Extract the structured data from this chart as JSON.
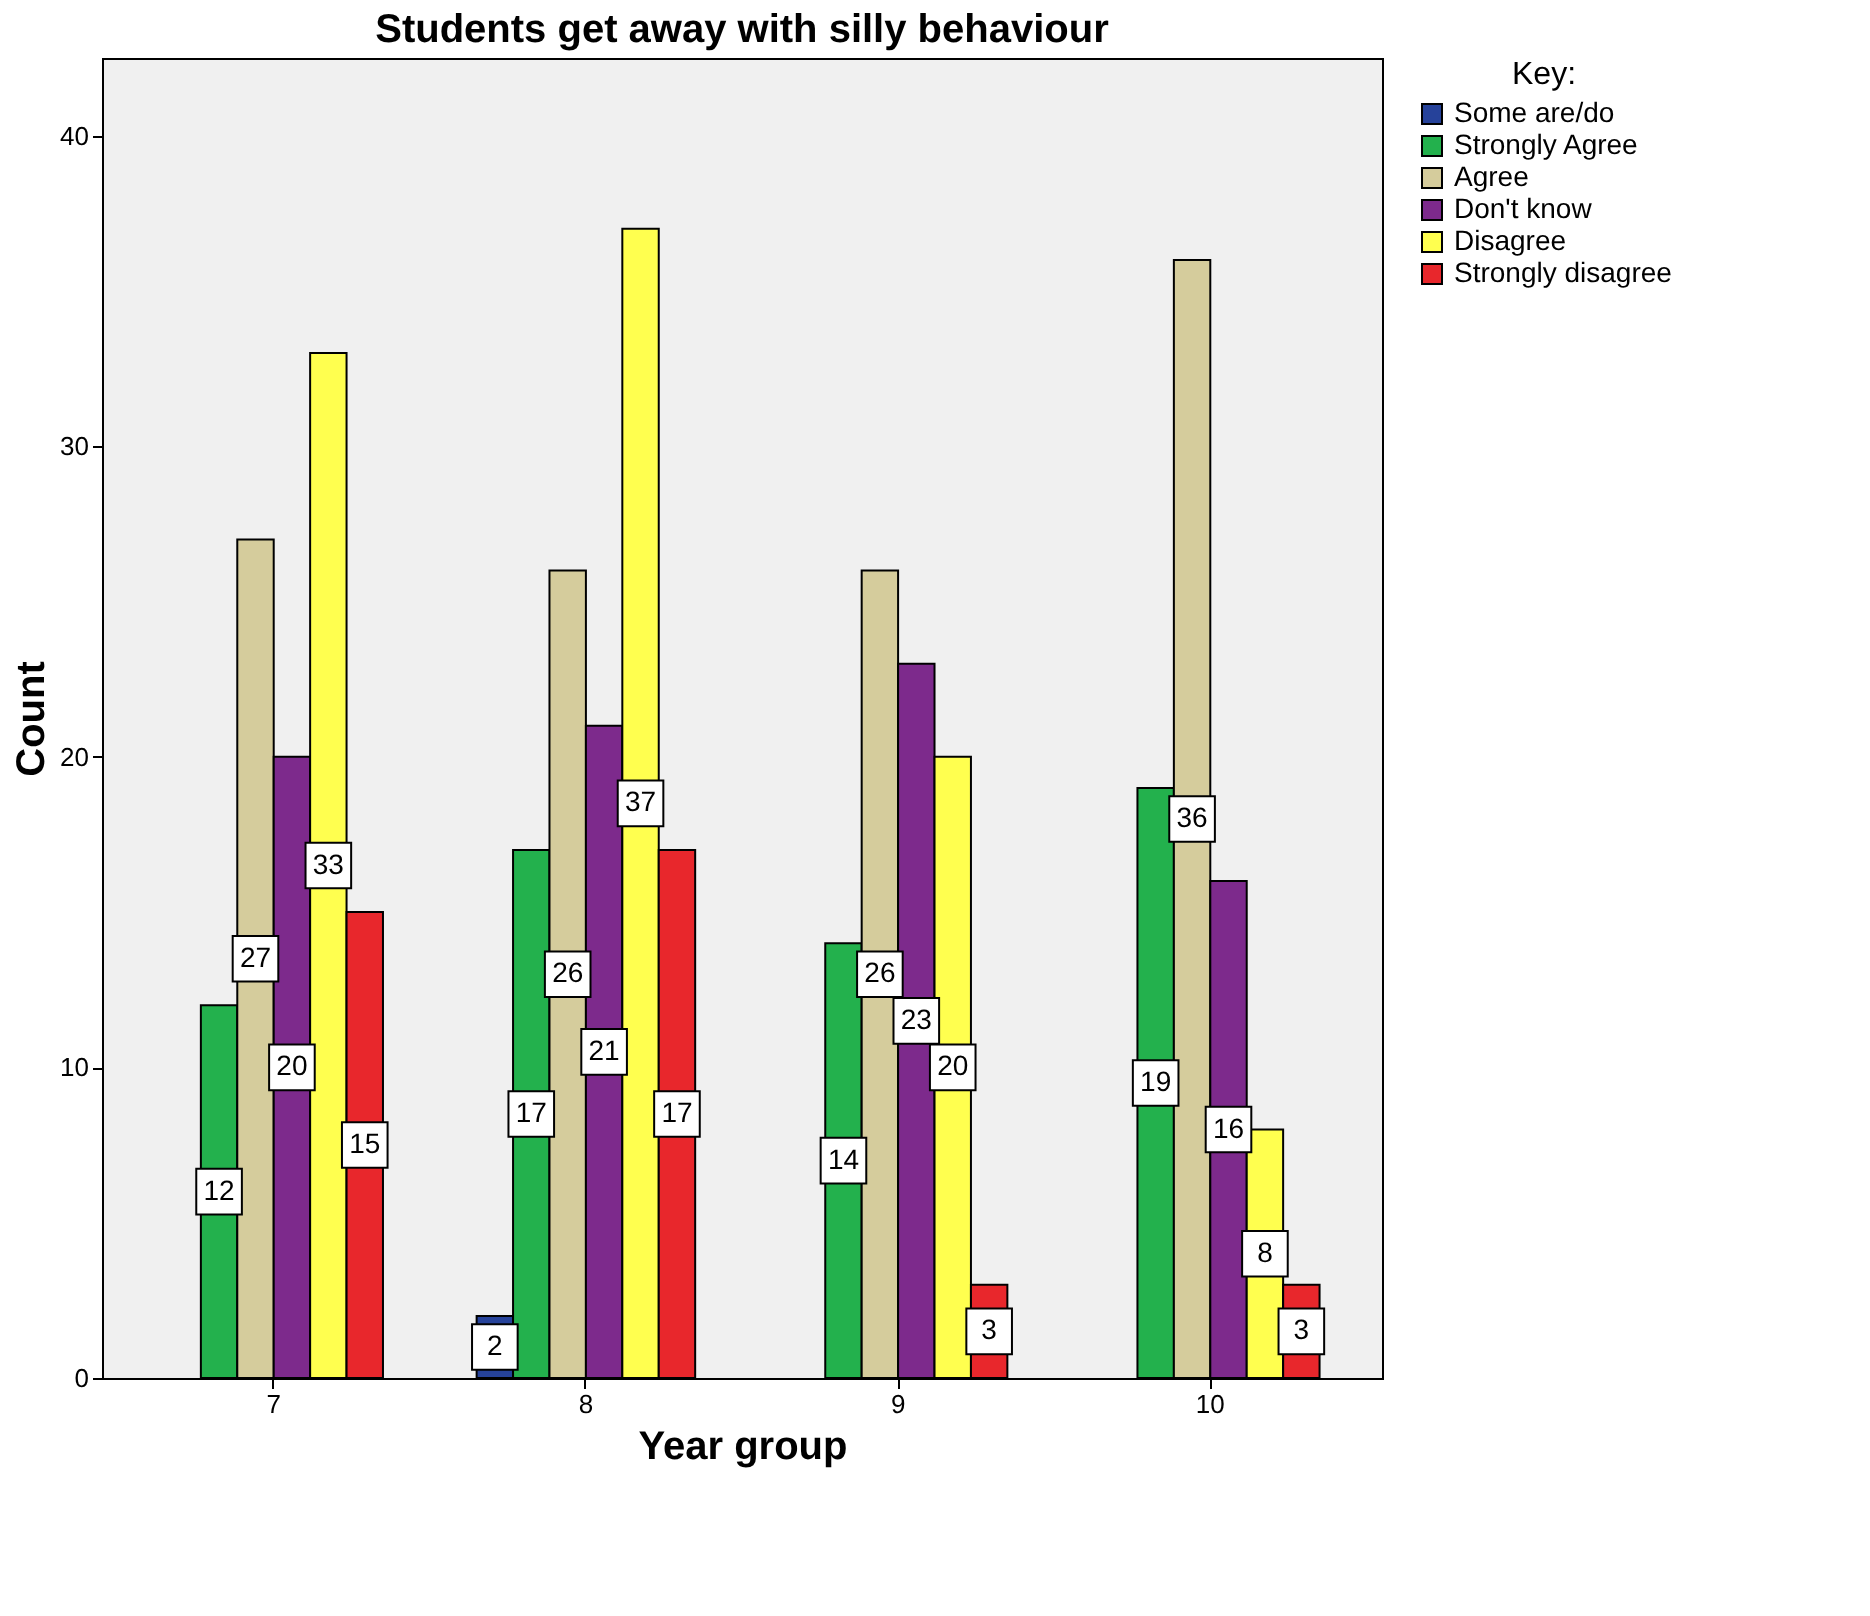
{
  "chart_data": {
    "type": "bar",
    "title": "Students get away with silly behaviour",
    "xlabel": "Year group",
    "ylabel": "Count",
    "legend_title": "Key:",
    "categories": [
      "7",
      "8",
      "9",
      "10"
    ],
    "series": [
      {
        "name": "Some are/do",
        "color": "#26429a",
        "values": [
          null,
          2,
          null,
          null
        ]
      },
      {
        "name": "Strongly Agree",
        "color": "#23b14d",
        "values": [
          12,
          17,
          14,
          19
        ]
      },
      {
        "name": "Agree",
        "color": "#d5cc9c",
        "values": [
          27,
          26,
          26,
          36
        ]
      },
      {
        "name": "Don't know",
        "color": "#7d2a8c",
        "values": [
          20,
          21,
          23,
          16
        ]
      },
      {
        "name": "Disagree",
        "color": "#ffff4f",
        "values": [
          33,
          37,
          20,
          8
        ]
      },
      {
        "name": "Strongly disagree",
        "color": "#e8272c",
        "values": [
          15,
          17,
          3,
          3
        ]
      }
    ],
    "ylim": [
      0,
      42.5
    ],
    "yticks": [
      0,
      10,
      20,
      30,
      40
    ],
    "grid": false,
    "legend": "top right",
    "data_labels": true
  }
}
